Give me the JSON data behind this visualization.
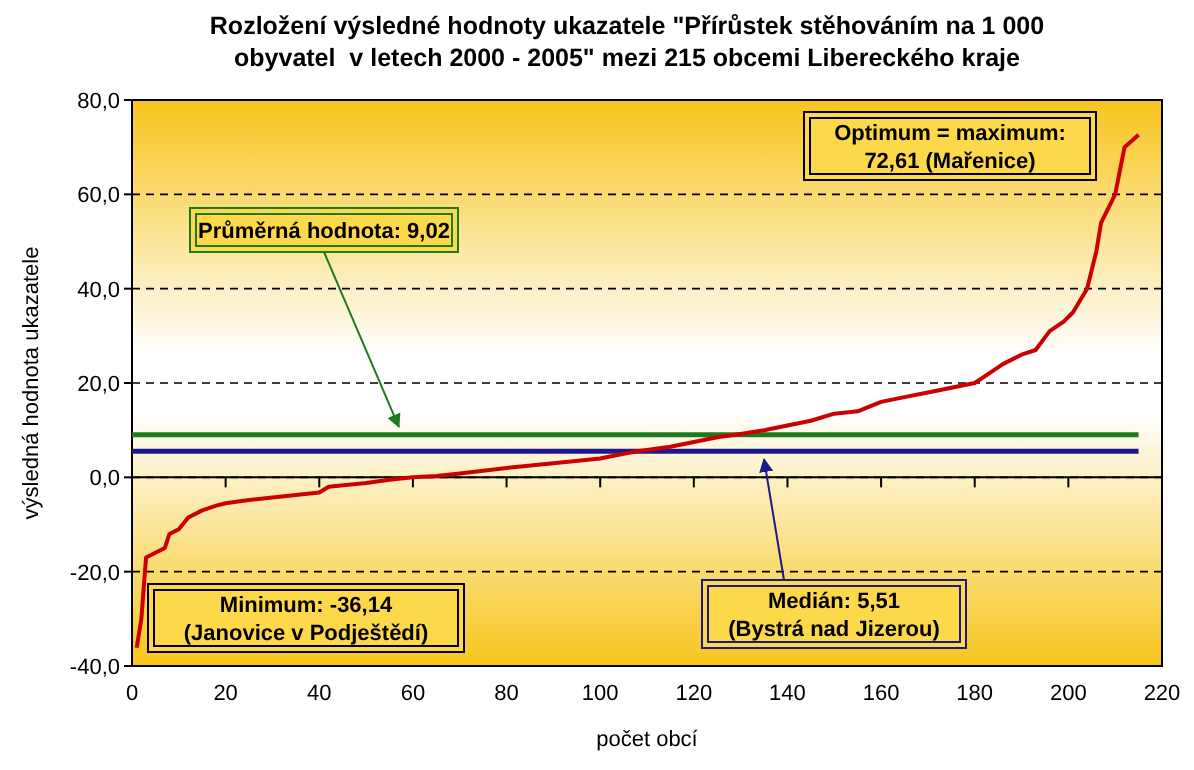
{
  "chart_data": {
    "type": "line",
    "title": "Rozložení výsledné hodnoty ukazatele \"Přírůstek stěhováním na 1 000\nobyvatel  v letech 2000 - 2005\" mezi 215 obcemi Libereckého kraje",
    "xlabel": "počet obcí",
    "ylabel": "výsledná hodnota ukazatele",
    "xlim": [
      0,
      220
    ],
    "xticks": [
      0,
      20,
      40,
      60,
      80,
      100,
      120,
      140,
      160,
      180,
      200,
      220
    ],
    "ylim": [
      -40,
      80
    ],
    "yticks": [
      {
        "value": -40,
        "label": "-40,0"
      },
      {
        "value": -20,
        "label": "-20,0"
      },
      {
        "value": 0,
        "label": "0,0"
      },
      {
        "value": 20,
        "label": "20,0"
      },
      {
        "value": 40,
        "label": "40,0"
      },
      {
        "value": 60,
        "label": "60,0"
      },
      {
        "value": 80,
        "label": "80,0"
      }
    ],
    "grid": "y",
    "marker": "none",
    "line_style": "solid",
    "series": [
      {
        "color": "#cc0000",
        "x": [
          1,
          2,
          3,
          5,
          7,
          8,
          10,
          12,
          15,
          18,
          20,
          25,
          30,
          40,
          42,
          50,
          55,
          60,
          65,
          70,
          80,
          90,
          100,
          105,
          108,
          115,
          120,
          125,
          130,
          135,
          140,
          145,
          150,
          155,
          160,
          165,
          170,
          175,
          180,
          183,
          186,
          190,
          193,
          196,
          199,
          201,
          204,
          206,
          207,
          209,
          210,
          211,
          212,
          215
        ],
        "values": [
          -36.14,
          -30,
          -17,
          -16,
          -15,
          -12,
          -11,
          -8.5,
          -7,
          -6,
          -5.5,
          -4.8,
          -4.3,
          -3.2,
          -2,
          -1.2,
          -0.5,
          0,
          0.3,
          0.8,
          2,
          3,
          4,
          5,
          5.51,
          6.5,
          7.5,
          8.5,
          9.2,
          10,
          11,
          12,
          13.5,
          14,
          16,
          17,
          18,
          19,
          20,
          22,
          24,
          26,
          27,
          31,
          33,
          35,
          40,
          48,
          54,
          58,
          60,
          65,
          70,
          72.61
        ]
      }
    ],
    "ref_lines": [
      {
        "axis": "y",
        "value": 9.02,
        "color": "#1f7a1f"
      },
      {
        "axis": "y",
        "value": 5.51,
        "color": "#1a1a8c"
      }
    ],
    "annotations": [
      {
        "text": "Průměrná hodnota: 9,02",
        "x": 57,
        "y": 9.02
      },
      {
        "text": "Medián: 5,51\n(Bystrá nad Jizerou)",
        "x": 135,
        "y": 5.51
      },
      "Minimum: -36,14\n(Janovice v Podještědí)",
      "Optimum = maximum:\n72,61 (Mařenice)"
    ]
  }
}
